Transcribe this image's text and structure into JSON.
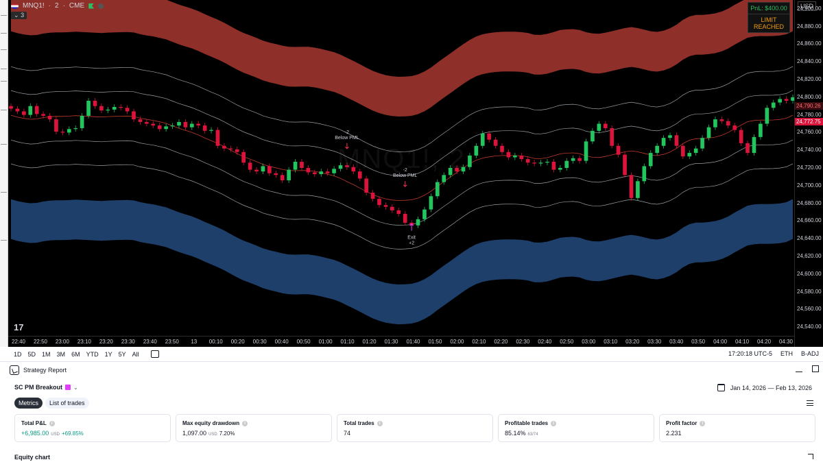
{
  "symbol": {
    "name": "MNQ1!",
    "interval": "2",
    "exchange": "CME",
    "separator": "·",
    "indicator_count": "3",
    "watermark": "MNQ1!, 2"
  },
  "pnl_box": {
    "pnl": "PnL: $400.00",
    "status": "LIMIT REACHED"
  },
  "price_axis": {
    "currency": "USD",
    "ticks": [
      "24,900.00",
      "24,880.00",
      "24,860.00",
      "24,840.00",
      "24,820.00",
      "24,800.00",
      "24,780.00",
      "24,760.00",
      "24,740.00",
      "24,720.00",
      "24,700.00",
      "24,680.00",
      "24,660.00",
      "24,640.00",
      "24,620.00",
      "24,600.00",
      "24,580.00",
      "24,560.00",
      "24,540.00"
    ],
    "tag_primary": "24,772.75",
    "tag_secondary": "24,790.26"
  },
  "time_axis": {
    "ticks": [
      "22:40",
      "22:50",
      "23:00",
      "23:10",
      "23:20",
      "23:30",
      "23:40",
      "23:50",
      "13",
      "00:10",
      "00:20",
      "00:30",
      "00:40",
      "00:50",
      "01:00",
      "01:10",
      "01:20",
      "01:30",
      "01:40",
      "01:50",
      "02:00",
      "02:10",
      "02:20",
      "02:30",
      "02:40",
      "02:50",
      "03:00",
      "03:10",
      "03:20",
      "03:30",
      "03:40",
      "03:50",
      "04:00",
      "04:10",
      "04:20",
      "04:30"
    ]
  },
  "signals": [
    {
      "qty": "-2",
      "label": "Below PML"
    },
    {
      "qty": "-2",
      "label": "Below PML"
    },
    {
      "qty": "+2",
      "label": "Exit"
    }
  ],
  "logo": "17",
  "toolbar": {
    "ranges": [
      "1D",
      "5D",
      "1M",
      "3M",
      "6M",
      "YTD",
      "1Y",
      "5Y",
      "All"
    ],
    "time": "17:20:18 UTC-5",
    "session": "ETH",
    "adjust": "B-ADJ"
  },
  "report": {
    "tab_label": "Strategy Report",
    "strategy_name": "SC PM Breakout",
    "date_range": "Jan 14, 2026 — Feb 13, 2026",
    "tabs": [
      "Metrics",
      "List of trades"
    ],
    "metrics": [
      {
        "title": "Total P&L",
        "value": "+6,985.00",
        "unit": "USD",
        "extra": "+69.85%"
      },
      {
        "title": "Max equity drawdown",
        "value": "1,097.00",
        "unit": "USD",
        "extra": "7.20%"
      },
      {
        "title": "Total trades",
        "value": "74",
        "unit": "",
        "extra": ""
      },
      {
        "title": "Profitable trades",
        "value": "85.14%",
        "unit": "",
        "extra": "63/74"
      },
      {
        "title": "Profit factor",
        "value": "2.231",
        "unit": "",
        "extra": ""
      }
    ],
    "equity_title": "Equity chart"
  },
  "colors": {
    "up": "#22c55e",
    "down": "#dc143c",
    "upper_band": "#8e2f2a",
    "lower_band": "#1f3f6b",
    "accent_positive": "#089981"
  },
  "chart_data": {
    "type": "candlestick",
    "y_range": [
      24530,
      24910
    ],
    "close_series": [
      24787,
      24784,
      24780,
      24790,
      24781,
      24779,
      24775,
      24761,
      24760,
      24764,
      24765,
      24779,
      24796,
      24790,
      24785,
      24786,
      24789,
      24788,
      24784,
      24775,
      24772,
      24770,
      24768,
      24764,
      24767,
      24768,
      24772,
      24766,
      24770,
      24768,
      24762,
      24763,
      24745,
      24742,
      24741,
      24738,
      24726,
      24718,
      24716,
      24722,
      24714,
      24712,
      24706,
      24718,
      24727,
      24720,
      24715,
      24713,
      24716,
      24714,
      24719,
      24723,
      24721,
      24716,
      24708,
      24692,
      24685,
      24678,
      24676,
      24672,
      24668,
      24658,
      24655,
      24662,
      24673,
      24688,
      24704,
      24712,
      24720,
      24716,
      24721,
      24734,
      24745,
      24759,
      24752,
      24745,
      24738,
      24732,
      24734,
      24730,
      24726,
      24725,
      24726,
      24727,
      24718,
      24720,
      24728,
      24731,
      24728,
      24750,
      24762,
      24770,
      24765,
      24745,
      24735,
      24712,
      24686,
      24705,
      24722,
      24737,
      24745,
      24754,
      24757,
      24745,
      24733,
      24737,
      24742,
      24754,
      24766,
      24775,
      24773,
      24768,
      24763,
      24748,
      24737,
      24755,
      24770,
      24788,
      24794,
      24798,
      24796,
      24800
    ]
  }
}
